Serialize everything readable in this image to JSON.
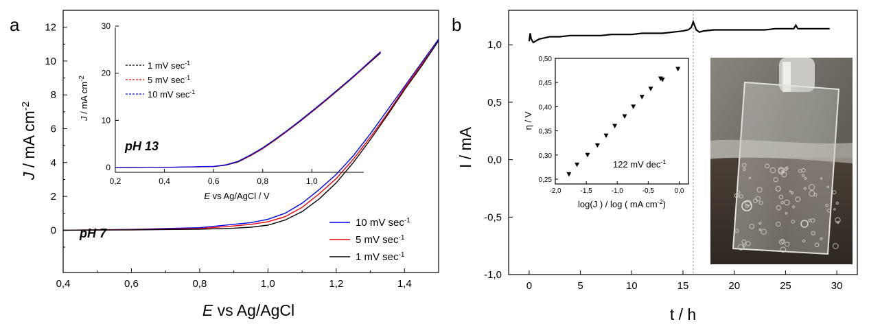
{
  "figure": {
    "panel_a_label": "a",
    "panel_b_label": "b"
  },
  "chart_data": [
    {
      "id": "panel-a-main",
      "type": "line",
      "xlabel_italic": "E",
      "xlabel_rest": " vs Ag/AgCl",
      "ylabel_italic": "J",
      "ylabel_rest": " / mA cm",
      "ylabel_sup": "-2",
      "xlim": [
        0.4,
        1.5
      ],
      "ylim": [
        -2.5,
        13
      ],
      "xticks": [
        0.4,
        0.6,
        0.8,
        1.0,
        1.2,
        1.4
      ],
      "xtick_labels": [
        "0,4",
        "0,6",
        "0,8",
        "1,0",
        "1,2",
        "1,4"
      ],
      "yticks": [
        0,
        2,
        4,
        6,
        8,
        10,
        12
      ],
      "ytick_labels": [
        "0",
        "2",
        "4",
        "6",
        "8",
        "10",
        "12"
      ],
      "annotation": "pH 7",
      "legend_position": "bottom-right",
      "series": [
        {
          "name": "10 mV sec",
          "sup": "-1",
          "color": "#0000ee",
          "x": [
            0.4,
            0.6,
            0.8,
            0.9,
            0.95,
            1.0,
            1.05,
            1.1,
            1.15,
            1.2,
            1.25,
            1.3,
            1.35,
            1.4,
            1.45,
            1.5
          ],
          "y": [
            0.0,
            0.05,
            0.15,
            0.35,
            0.45,
            0.65,
            1.0,
            1.6,
            2.4,
            3.3,
            4.4,
            5.7,
            7.1,
            8.5,
            9.9,
            11.3
          ]
        },
        {
          "name": "5 mV sec",
          "sup": "-1",
          "color": "#ee0000",
          "x": [
            0.4,
            0.6,
            0.8,
            0.9,
            0.95,
            1.0,
            1.05,
            1.1,
            1.15,
            1.2,
            1.25,
            1.3,
            1.35,
            1.4,
            1.45,
            1.5
          ],
          "y": [
            0.0,
            0.03,
            0.1,
            0.25,
            0.35,
            0.5,
            0.8,
            1.35,
            2.15,
            3.05,
            4.2,
            5.5,
            6.9,
            8.4,
            9.8,
            11.2
          ]
        },
        {
          "name": "1 mV sec",
          "sup": "-1",
          "color": "#000000",
          "x": [
            0.4,
            0.6,
            0.8,
            0.9,
            0.95,
            1.0,
            1.05,
            1.1,
            1.15,
            1.2,
            1.25,
            1.3,
            1.35,
            1.4,
            1.45,
            1.5
          ],
          "y": [
            0.0,
            0.02,
            0.06,
            0.12,
            0.18,
            0.3,
            0.6,
            1.1,
            1.85,
            2.8,
            4.0,
            5.35,
            6.8,
            8.3,
            9.7,
            11.2
          ]
        }
      ]
    },
    {
      "id": "panel-a-inset",
      "type": "line",
      "xlabel_italic": "E",
      "xlabel_rest": " vs Ag/AgCl / V",
      "ylabel_italic": "J",
      "ylabel_rest": " / mA cm",
      "ylabel_sup": "-2",
      "xlim": [
        0.2,
        1.15
      ],
      "ylim": [
        -1,
        30
      ],
      "xticks": [
        0.2,
        0.4,
        0.6,
        0.8,
        1.0
      ],
      "xtick_labels": [
        "0,2",
        "0,4",
        "0,6",
        "0,8",
        "1,0"
      ],
      "yticks": [
        0,
        10,
        20,
        30
      ],
      "ytick_labels": [
        "0",
        "10",
        "20",
        "30"
      ],
      "annotation": "pH 13",
      "legend_position": "top-left",
      "series": [
        {
          "name": "1 mV sec",
          "sup": "-1",
          "color": "#000000",
          "x": [
            0.2,
            0.4,
            0.6,
            0.65,
            0.7,
            0.75,
            0.8,
            0.85,
            0.9,
            0.95,
            1.0,
            1.05,
            1.1,
            1.15,
            1.2,
            1.28
          ],
          "y": [
            0.0,
            0.05,
            0.2,
            0.5,
            1.2,
            2.5,
            4.0,
            5.8,
            7.7,
            9.7,
            11.8,
            13.9,
            16.1,
            18.3,
            20.6,
            24.3
          ]
        },
        {
          "name": "5 mV sec",
          "sup": "-1",
          "color": "#ee0000",
          "x": [
            0.2,
            0.4,
            0.6,
            0.65,
            0.7,
            0.75,
            0.8,
            0.85,
            0.9,
            0.95,
            1.0,
            1.05,
            1.1,
            1.15,
            1.2,
            1.28
          ],
          "y": [
            0.0,
            0.05,
            0.22,
            0.55,
            1.3,
            2.6,
            4.1,
            5.9,
            7.8,
            9.8,
            11.9,
            14.0,
            16.2,
            18.4,
            20.7,
            24.5
          ]
        },
        {
          "name": "10 mV sec",
          "sup": "-1",
          "color": "#0000ee",
          "x": [
            0.2,
            0.4,
            0.6,
            0.65,
            0.7,
            0.75,
            0.8,
            0.85,
            0.9,
            0.95,
            1.0,
            1.05,
            1.1,
            1.15,
            1.2,
            1.28
          ],
          "y": [
            0.0,
            0.05,
            0.25,
            0.6,
            1.35,
            2.7,
            4.2,
            6.0,
            7.9,
            9.9,
            12.0,
            14.1,
            16.3,
            18.5,
            20.8,
            24.6
          ]
        }
      ]
    },
    {
      "id": "panel-b-main",
      "type": "line",
      "xlabel": "t / h",
      "ylabel": "I / mA",
      "xlim": [
        -2,
        32
      ],
      "ylim": [
        -1.0,
        1.3
      ],
      "xticks": [
        0,
        5,
        10,
        15,
        20,
        25,
        30
      ],
      "xtick_labels": [
        "0",
        "5",
        "10",
        "15",
        "20",
        "25",
        "30"
      ],
      "yticks": [
        -1.0,
        -0.5,
        0.0,
        0.5,
        1.0
      ],
      "ytick_labels": [
        "-1,0",
        "-0,5",
        "0,0",
        "0,5",
        "1,0"
      ],
      "marker_line_x": 16,
      "series": [
        {
          "name": "",
          "color": "#000000",
          "x": [
            0,
            0.1,
            0.2,
            0.4,
            0.6,
            1,
            1.5,
            2,
            3,
            4,
            5,
            6,
            7,
            8,
            9,
            10,
            11,
            12,
            13,
            14,
            15,
            15.5,
            15.8,
            16.0,
            16.3,
            16.6,
            17,
            18,
            19,
            20,
            21,
            22,
            23,
            24,
            25,
            25.8,
            26,
            26.2,
            27,
            28,
            29,
            29.3
          ],
          "y": [
            1.03,
            1.1,
            1.05,
            1.02,
            1.03,
            1.05,
            1.06,
            1.07,
            1.07,
            1.08,
            1.08,
            1.08,
            1.08,
            1.09,
            1.09,
            1.09,
            1.1,
            1.1,
            1.1,
            1.11,
            1.12,
            1.13,
            1.15,
            1.2,
            1.13,
            1.11,
            1.12,
            1.13,
            1.13,
            1.13,
            1.13,
            1.13,
            1.13,
            1.14,
            1.14,
            1.14,
            1.17,
            1.14,
            1.14,
            1.14,
            1.14,
            1.14
          ]
        }
      ]
    },
    {
      "id": "panel-b-inset",
      "type": "scatter",
      "xlabel": "log(J ) / log ( mA cm",
      "xlabel_sup": "-2",
      "xlabel_end": ")",
      "ylabel": "η / V",
      "xlim": [
        -2.0,
        0.15
      ],
      "ylim": [
        0.24,
        0.5
      ],
      "xticks": [
        -2.0,
        -1.5,
        -1.0,
        -0.5,
        0.0
      ],
      "xtick_labels": [
        "-2,0",
        "-1,5",
        "-1,0",
        "-0,5",
        "0,0"
      ],
      "yticks": [
        0.25,
        0.3,
        0.35,
        0.4,
        0.45,
        0.5
      ],
      "ytick_labels": [
        "0,25",
        "0,30",
        "0,35",
        "0,40",
        "0,45",
        "0,50"
      ],
      "annotation": "122 mV dec",
      "annotation_sup": "-1",
      "series": [
        {
          "name": "",
          "color": "#000000",
          "x": [
            -1.78,
            -1.65,
            -1.48,
            -1.32,
            -1.18,
            -1.04,
            -0.88,
            -0.74,
            -0.6,
            -0.46,
            -0.3,
            -0.27,
            -0.02
          ],
          "y": [
            0.26,
            0.28,
            0.3,
            0.32,
            0.34,
            0.36,
            0.38,
            0.4,
            0.42,
            0.437,
            0.458,
            0.456,
            0.478
          ]
        }
      ]
    }
  ]
}
